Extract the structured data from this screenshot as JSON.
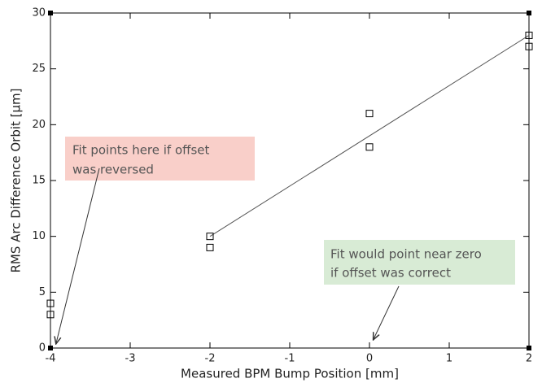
{
  "chart_data": {
    "type": "scatter",
    "x_label": "Measured BPM Bump Position [mm]",
    "y_label": "RMS Arc Difference Orbit [μm]",
    "series": [
      {
        "color": "#000000",
        "x": [
          -4,
          -4,
          -2,
          -2,
          0,
          0,
          2,
          2
        ],
        "values": [
          4,
          3,
          10,
          9,
          21,
          18,
          28,
          27
        ]
      }
    ],
    "fit_line": {
      "color": "#555555",
      "x": [
        -2,
        2
      ],
      "values": [
        10,
        28
      ]
    },
    "xlim": [
      -4,
      2
    ],
    "xticks": [
      -4,
      -3,
      -2,
      -1,
      0,
      1,
      2
    ],
    "ylim": [
      0,
      30
    ],
    "yticks": [
      0,
      5,
      10,
      15,
      20,
      25,
      30
    ],
    "grid": false,
    "annotations": [
      {
        "lines": [
          "Fit points here if offset",
          "was reversed"
        ],
        "color": "#f9cfc9"
      },
      {
        "lines": [
          "Fit would point near zero",
          "if offset was correct"
        ],
        "color": "#d8ebd5"
      }
    ]
  }
}
